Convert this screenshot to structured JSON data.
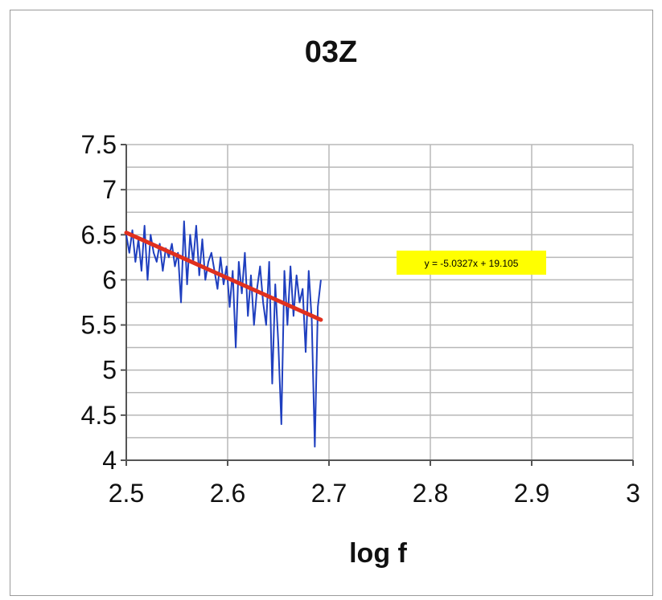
{
  "chart_data": {
    "type": "line",
    "title": "03Z",
    "xlabel": "log f",
    "ylabel": "",
    "xlim": [
      2.5,
      3
    ],
    "ylim": [
      4,
      7.5
    ],
    "x_ticks": [
      "2.5",
      "2.6",
      "2.7",
      "2.8",
      "2.9",
      "3"
    ],
    "y_ticks": [
      "4",
      "4.5",
      "5",
      "5.5",
      "6",
      "6.5",
      "7",
      "7.5"
    ],
    "grid": true,
    "series": [
      {
        "color": "#1f3fbf",
        "x": [
          2.5,
          2.503,
          2.506,
          2.509,
          2.512,
          2.515,
          2.518,
          2.521,
          2.524,
          2.527,
          2.53,
          2.533,
          2.536,
          2.539,
          2.542,
          2.545,
          2.548,
          2.551,
          2.554,
          2.557,
          2.56,
          2.563,
          2.566,
          2.569,
          2.572,
          2.575,
          2.578,
          2.581,
          2.584,
          2.587,
          2.59,
          2.593,
          2.596,
          2.599,
          2.602,
          2.605,
          2.608,
          2.611,
          2.614,
          2.617,
          2.62,
          2.623,
          2.626,
          2.629,
          2.632,
          2.635,
          2.638,
          2.641,
          2.644,
          2.647,
          2.65,
          2.653,
          2.656,
          2.659,
          2.662,
          2.665,
          2.668,
          2.671,
          2.674,
          2.677,
          2.68,
          2.683,
          2.686,
          2.689,
          2.692
        ],
        "y": [
          6.5,
          6.3,
          6.55,
          6.2,
          6.45,
          6.1,
          6.6,
          6.0,
          6.5,
          6.3,
          6.2,
          6.4,
          6.1,
          6.35,
          6.25,
          6.4,
          6.15,
          6.3,
          5.75,
          6.65,
          5.95,
          6.5,
          6.2,
          6.6,
          6.05,
          6.45,
          6.0,
          6.2,
          6.3,
          6.1,
          5.9,
          6.25,
          5.95,
          6.15,
          5.7,
          6.1,
          5.25,
          6.2,
          5.85,
          6.3,
          5.6,
          6.05,
          5.5,
          5.9,
          6.15,
          5.75,
          5.5,
          6.2,
          4.85,
          5.95,
          5.3,
          4.4,
          6.1,
          5.5,
          6.15,
          5.6,
          6.05,
          5.75,
          5.9,
          5.2,
          6.1,
          5.55,
          4.15,
          5.7,
          6.0
        ]
      }
    ],
    "trendline": {
      "color": "#e0301e",
      "x": [
        2.5,
        2.692
      ],
      "equation": "y = -5.0327x + 19.105",
      "slope": -5.0327,
      "intercept": 19.105
    }
  }
}
